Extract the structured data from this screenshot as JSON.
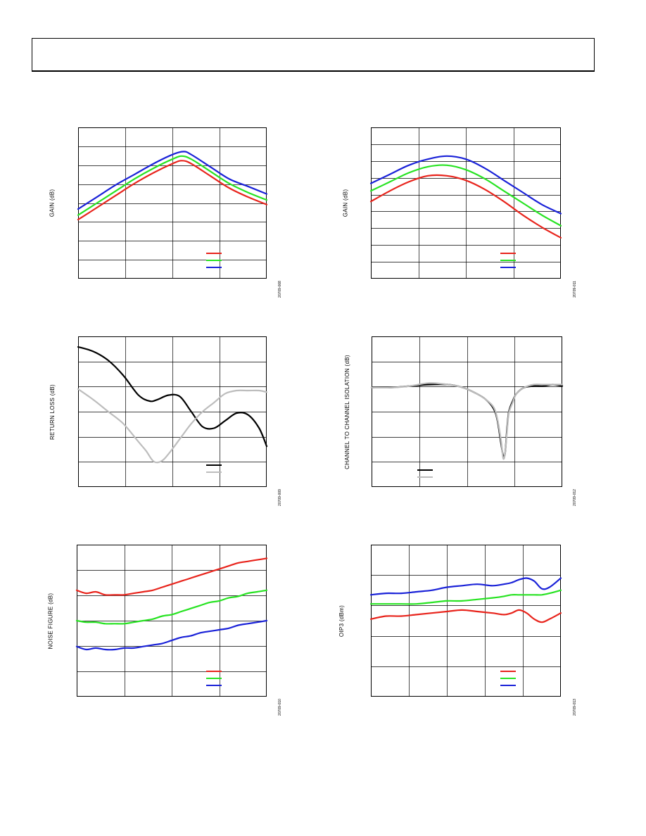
{
  "page": {
    "colors": {
      "red": "#e8241c",
      "green": "#27e322",
      "blue": "#1a22d8",
      "black": "#000000",
      "gray": "#bdbdbd",
      "grid": "#000000"
    }
  },
  "chart_data": [
    {
      "type": "line",
      "ylabel": "GAIN (dB)",
      "figure_code": "20709-008",
      "grid": true,
      "legend": "bottom-right",
      "ncols": 4,
      "nrows": 8,
      "xlim": [
        0,
        100
      ],
      "ylim": [
        0,
        100
      ],
      "series": [
        {
          "name": "",
          "color": "red",
          "x": [
            0,
            10,
            20,
            30,
            40,
            50,
            55,
            60,
            70,
            80,
            90,
            100
          ],
          "y": [
            39,
            47,
            55,
            63,
            70,
            76,
            78,
            76,
            68,
            60,
            54,
            49
          ]
        },
        {
          "name": "",
          "color": "green",
          "x": [
            0,
            10,
            20,
            30,
            40,
            50,
            55,
            60,
            70,
            80,
            90,
            100
          ],
          "y": [
            42,
            50,
            58,
            66,
            73,
            79,
            81,
            79,
            71,
            63,
            57,
            52
          ]
        },
        {
          "name": "",
          "color": "blue",
          "x": [
            0,
            10,
            20,
            30,
            40,
            50,
            56,
            60,
            70,
            80,
            90,
            100
          ],
          "y": [
            46,
            54,
            62,
            69,
            76,
            82,
            84,
            82,
            74,
            66,
            61,
            56
          ]
        }
      ]
    },
    {
      "type": "line",
      "ylabel": "GAIN (dB)",
      "figure_code": "20709-011",
      "grid": true,
      "legend": "bottom-right",
      "ncols": 4,
      "nrows": 9,
      "xlim": [
        0,
        100
      ],
      "ylim": [
        0,
        100
      ],
      "series": [
        {
          "name": "",
          "color": "red",
          "x": [
            0,
            10,
            20,
            30,
            40,
            50,
            60,
            70,
            80,
            90,
            100
          ],
          "y": [
            51,
            58,
            64,
            68,
            68,
            65,
            59,
            51,
            42,
            34,
            27
          ]
        },
        {
          "name": "",
          "color": "green",
          "x": [
            0,
            10,
            20,
            30,
            40,
            50,
            60,
            70,
            80,
            90,
            100
          ],
          "y": [
            58,
            64,
            70,
            74,
            75,
            72,
            66,
            58,
            50,
            42,
            35
          ]
        },
        {
          "name": "",
          "color": "blue",
          "x": [
            0,
            10,
            20,
            30,
            40,
            50,
            60,
            70,
            80,
            90,
            100
          ],
          "y": [
            63,
            69,
            75,
            79,
            81,
            79,
            73,
            65,
            57,
            49,
            43
          ]
        }
      ]
    },
    {
      "type": "line",
      "ylabel": "RETURN LOSS (dB)",
      "figure_code": "20709-009",
      "grid": true,
      "legend": "bottom-right",
      "ncols": 4,
      "nrows": 6,
      "xlim": [
        0,
        100
      ],
      "ylim": [
        0,
        100
      ],
      "series": [
        {
          "name": "",
          "color": "black",
          "x": [
            0,
            8,
            16,
            24,
            32,
            38,
            42,
            48,
            54,
            60,
            66,
            72,
            78,
            84,
            90,
            96,
            100
          ],
          "y": [
            93,
            90,
            84,
            74,
            61,
            57,
            58,
            61,
            60,
            50,
            40,
            39,
            44,
            49,
            48,
            39,
            27
          ]
        },
        {
          "name": "",
          "color": "gray",
          "x": [
            0,
            8,
            16,
            24,
            32,
            36,
            40,
            44,
            48,
            54,
            60,
            66,
            72,
            78,
            84,
            90,
            96,
            100
          ],
          "y": [
            65,
            58,
            50,
            42,
            30,
            24,
            17,
            17,
            22,
            32,
            42,
            50,
            56,
            62,
            64,
            64,
            64,
            63
          ]
        }
      ]
    },
    {
      "type": "line",
      "ylabel": "CHANNEL TO CHANNEL ISOLATION (dB)",
      "figure_code": "20709-012",
      "grid": true,
      "legend": "bottom-left",
      "ncols": 4,
      "nrows": 6,
      "xlim": [
        0,
        100
      ],
      "ylim": [
        0,
        100
      ],
      "series": [
        {
          "name": "",
          "color": "black",
          "x": [
            0,
            10,
            20,
            30,
            40,
            48,
            55,
            60,
            64,
            66,
            68,
            69,
            70,
            71,
            72,
            74,
            76,
            80,
            85,
            90,
            95,
            100
          ],
          "y": [
            66,
            66,
            67,
            68,
            68,
            66,
            62,
            58,
            52,
            44,
            28,
            21,
            22,
            38,
            50,
            57,
            62,
            66,
            67,
            67,
            68,
            67
          ]
        },
        {
          "name": "",
          "color": "gray",
          "x": [
            0,
            10,
            20,
            30,
            40,
            48,
            55,
            60,
            64,
            66,
            68,
            69,
            70,
            71,
            72,
            74,
            76,
            80,
            85,
            90,
            95,
            100
          ],
          "y": [
            66,
            66,
            67,
            69,
            68,
            66,
            62,
            58,
            53,
            45,
            30,
            19,
            22,
            36,
            49,
            56,
            62,
            66,
            68,
            68,
            68,
            68
          ]
        }
      ]
    },
    {
      "type": "line",
      "ylabel": "NOISE FIGURE (dB)",
      "figure_code": "20709-010",
      "grid": true,
      "legend": "bottom-right",
      "ncols": 4,
      "nrows": 6,
      "xlim": [
        0,
        100
      ],
      "ylim": [
        0,
        100
      ],
      "series": [
        {
          "name": "",
          "color": "red",
          "x": [
            0,
            5,
            10,
            15,
            20,
            25,
            30,
            35,
            40,
            45,
            50,
            55,
            60,
            65,
            70,
            75,
            80,
            85,
            90,
            95,
            100
          ],
          "y": [
            70,
            68,
            69,
            67,
            67,
            67,
            68,
            69,
            70,
            72,
            74,
            76,
            78,
            80,
            82,
            84,
            86,
            88,
            89,
            90,
            91
          ]
        },
        {
          "name": "",
          "color": "green",
          "x": [
            0,
            5,
            10,
            15,
            20,
            25,
            30,
            35,
            40,
            45,
            50,
            55,
            60,
            65,
            70,
            75,
            80,
            85,
            90,
            95,
            100
          ],
          "y": [
            50,
            49,
            49,
            48,
            48,
            48,
            49,
            50,
            51,
            53,
            54,
            56,
            58,
            60,
            62,
            63,
            65,
            66,
            68,
            69,
            70
          ]
        },
        {
          "name": "",
          "color": "blue",
          "x": [
            0,
            5,
            10,
            15,
            20,
            25,
            30,
            35,
            40,
            45,
            50,
            55,
            60,
            65,
            70,
            75,
            80,
            85,
            90,
            95,
            100
          ],
          "y": [
            33,
            31,
            32,
            31,
            31,
            32,
            32,
            33,
            34,
            35,
            37,
            39,
            40,
            42,
            43,
            44,
            45,
            47,
            48,
            49,
            50
          ]
        }
      ]
    },
    {
      "type": "line",
      "ylabel": "OIP3 (dBm)",
      "figure_code": "20709-013",
      "grid": true,
      "legend": "bottom-right",
      "ncols": 5,
      "nrows": 5,
      "xlim": [
        0,
        100
      ],
      "ylim": [
        0,
        100
      ],
      "series": [
        {
          "name": "",
          "color": "red",
          "x": [
            0,
            8,
            16,
            24,
            32,
            40,
            48,
            56,
            64,
            70,
            74,
            78,
            82,
            86,
            90,
            94,
            100
          ],
          "y": [
            51,
            53,
            53,
            54,
            55,
            56,
            57,
            56,
            55,
            54,
            55,
            57,
            55,
            51,
            49,
            51,
            55
          ]
        },
        {
          "name": "",
          "color": "green",
          "x": [
            0,
            8,
            16,
            24,
            32,
            40,
            48,
            56,
            64,
            70,
            74,
            78,
            82,
            86,
            90,
            94,
            100
          ],
          "y": [
            61,
            61,
            61,
            61,
            62,
            63,
            63,
            64,
            65,
            66,
            67,
            67,
            67,
            67,
            67,
            68,
            70
          ]
        },
        {
          "name": "",
          "color": "blue",
          "x": [
            0,
            8,
            16,
            24,
            32,
            40,
            48,
            56,
            64,
            70,
            74,
            78,
            82,
            86,
            90,
            94,
            100
          ],
          "y": [
            67,
            68,
            68,
            69,
            70,
            72,
            73,
            74,
            73,
            74,
            75,
            77,
            78,
            76,
            71,
            72,
            78
          ]
        }
      ]
    }
  ]
}
